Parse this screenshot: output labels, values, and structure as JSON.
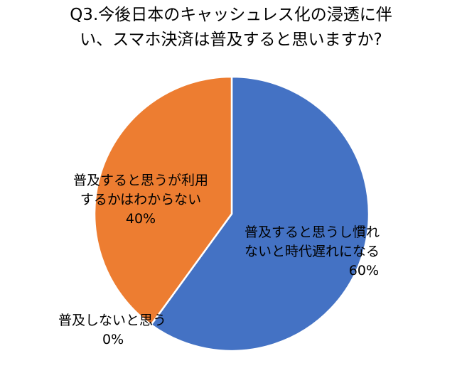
{
  "chart_data": {
    "type": "pie",
    "title": [
      "Q3.今後日本のキャッシュレス化の浸透に伴",
      "い、スマホ決済は普及すると思いますか?"
    ],
    "slices": [
      {
        "label": [
          "普及すると思うし慣れ",
          "ないと時代遅れになる"
        ],
        "value": 60,
        "percent_label": "60%",
        "color": "#4472C4"
      },
      {
        "label": [
          "普及すると思うが利用",
          "するかはわからない"
        ],
        "value": 40,
        "percent_label": "40%",
        "color": "#ED7D31"
      },
      {
        "label": [
          "普及しないと思う"
        ],
        "value": 0,
        "percent_label": "0%",
        "color": "#A5A5A5"
      }
    ],
    "start_angle_deg": 0,
    "direction": "clockwise",
    "legend": "none",
    "slice_border_color": "#FFFFFF"
  }
}
